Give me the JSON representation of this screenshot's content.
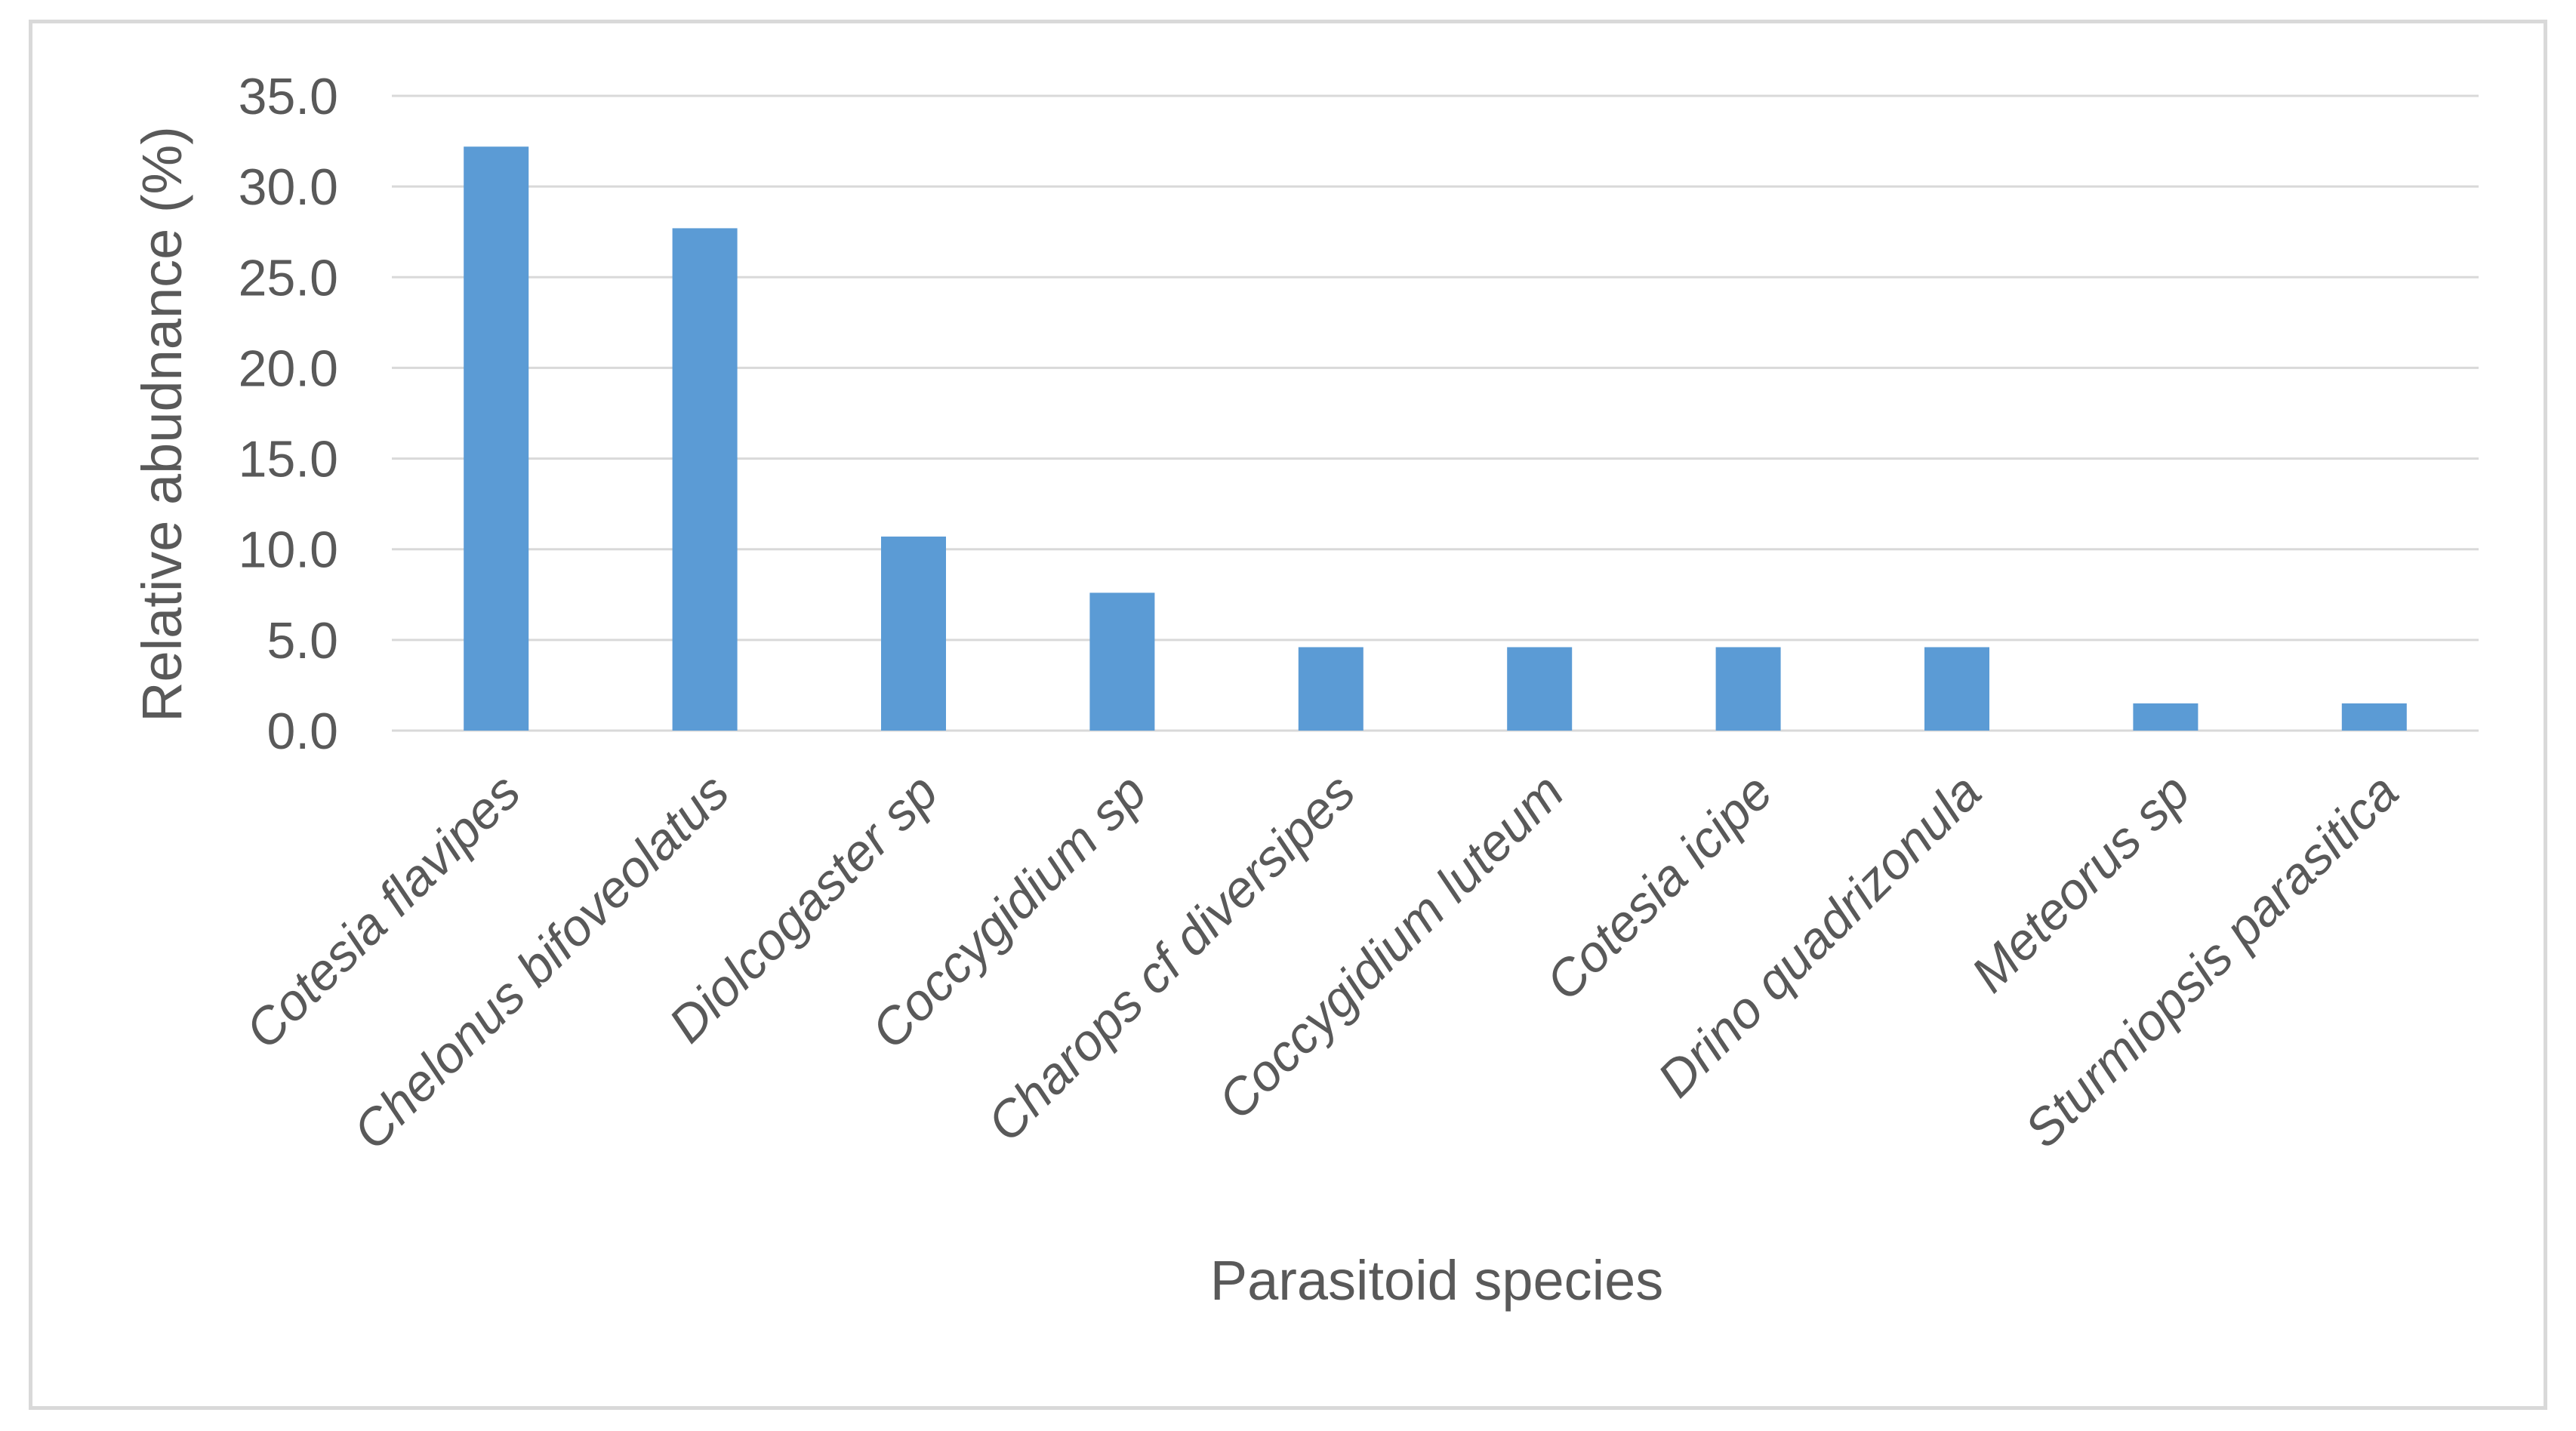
{
  "chart_data": {
    "type": "bar",
    "title": "",
    "xlabel": "Parasitoid species",
    "ylabel": "Relative abudnance (%)",
    "ylim": [
      0,
      35
    ],
    "yticks": [
      "0.0",
      "5.0",
      "10.0",
      "15.0",
      "20.0",
      "25.0",
      "30.0",
      "35.0"
    ],
    "grid": true,
    "legend": "none",
    "bar_color": "#5b9bd5",
    "categories": [
      "Cotesia flavipes",
      "Chelonus bifoveolatus",
      "Diolcogaster sp",
      "Coccygidium sp",
      "Charops cf diversipes",
      "Coccygidium luteum",
      "Cotesia icipe",
      "Drino quadrizonula",
      "Meteorus sp",
      "Sturmiopsis parasitica"
    ],
    "values": [
      32.2,
      27.7,
      10.7,
      7.6,
      4.6,
      4.6,
      4.6,
      4.6,
      1.5,
      1.5
    ]
  }
}
